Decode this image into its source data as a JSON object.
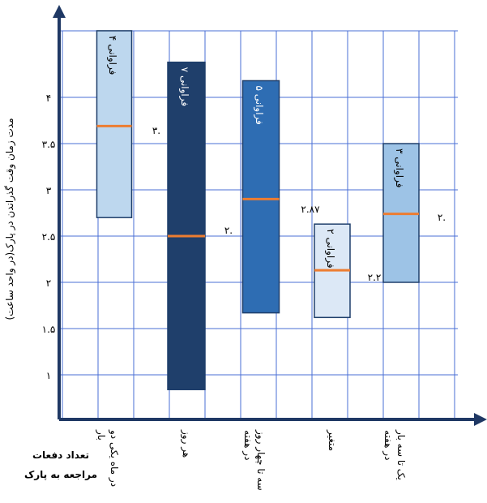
{
  "chart_data": {
    "type": "range-bar",
    "y_label": "مدت زمان وقت گذراندن در پارک(در واحد ساعت)",
    "x_label": [
      "تعداد دفعات",
      "مراجعه به پارک"
    ],
    "categories": [
      [
        "در ماه یکی دو",
        "بار"
      ],
      [
        "هر روز"
      ],
      [
        "سه تا چهار روز",
        "در هفته"
      ],
      [
        "متغیر"
      ],
      [
        "یک تا سه بار",
        "در هفته"
      ]
    ],
    "low": [
      2.7,
      0.84,
      1.67,
      1.62,
      2.0
    ],
    "high": [
      4.72,
      4.38,
      4.18,
      2.63,
      3.5
    ],
    "median": [
      3.69,
      2.5,
      2.9,
      2.13,
      2.74
    ],
    "bar_labels": [
      "فراوانی ۴",
      "فراوانی ۷",
      "فراوانی ۵",
      "فراوانی ۲",
      "فراوانی ۳"
    ],
    "colors": [
      "#bdd7ee",
      "#1f3f6b",
      "#2e6db3",
      "#dce8f6",
      "#9dc3e6"
    ],
    "median_color": "#ed7d31",
    "annotations": [
      "۳.",
      "۲.",
      "۲.۸۷",
      "۲.۲",
      "۲."
    ],
    "ylim": [
      0.5,
      5
    ],
    "yticks": [
      {
        "value": 1,
        "label": "۱"
      },
      {
        "value": 1.5,
        "label": "۱.۵"
      },
      {
        "value": 2,
        "label": "۲"
      },
      {
        "value": 2.5,
        "label": "۲.۵"
      },
      {
        "value": 3,
        "label": "۳"
      },
      {
        "value": 3.5,
        "label": "۳.۵"
      },
      {
        "value": 4,
        "label": "۴"
      }
    ],
    "grid": true
  }
}
